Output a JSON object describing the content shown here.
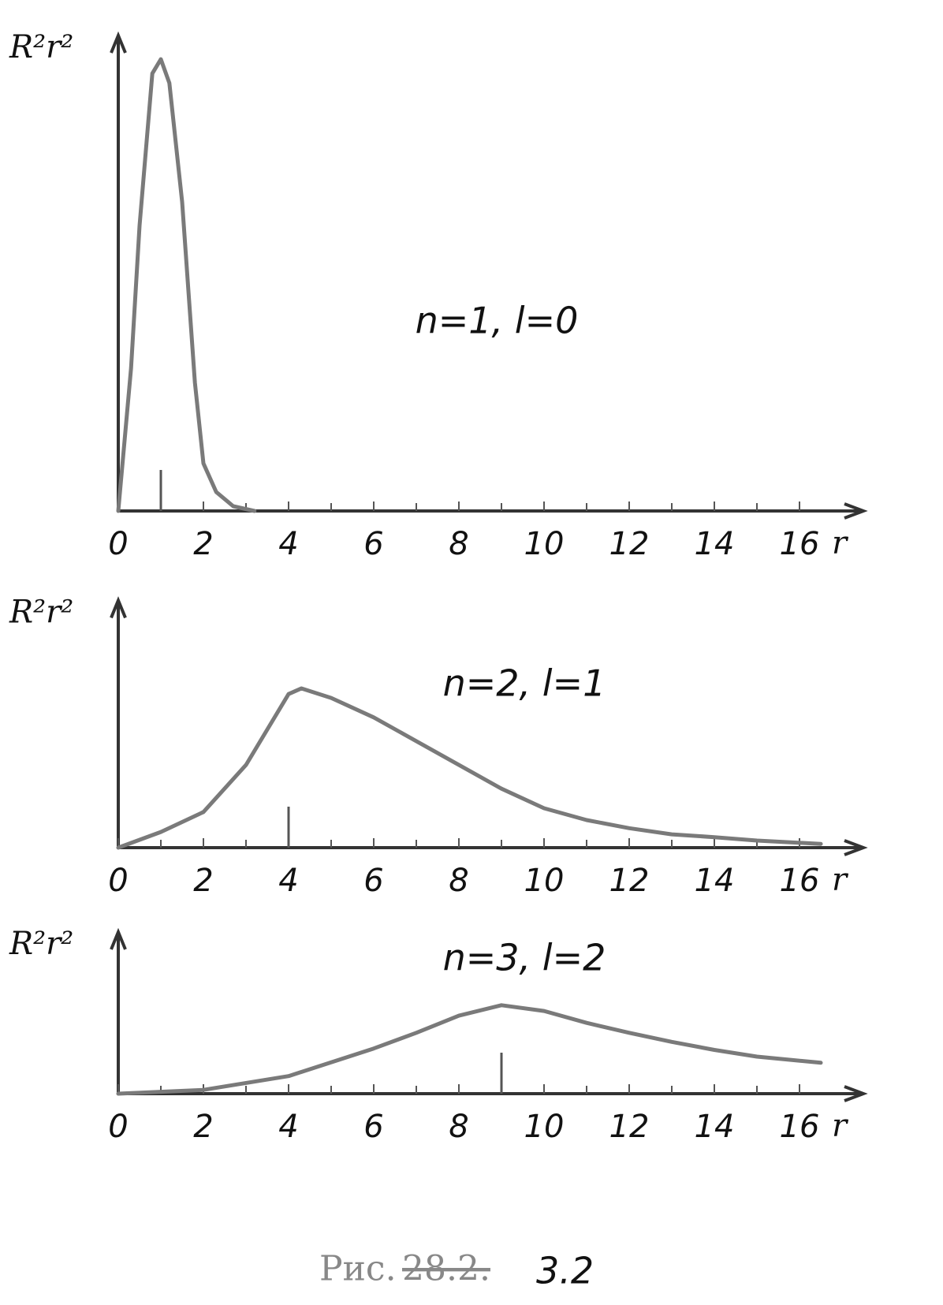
{
  "chart_data": [
    {
      "type": "line",
      "y_label": "R²r²",
      "x_label": "r",
      "annotation": "n=1,  l=0",
      "xlim": [
        0,
        17.5
      ],
      "ylim": [
        0,
        1
      ],
      "xticks": [
        0,
        2,
        4,
        6,
        8,
        10,
        12,
        14,
        16
      ],
      "minor_xticks": [
        1,
        3,
        5,
        7,
        9,
        11,
        13,
        15
      ],
      "peak_marker": 1,
      "series": [
        {
          "color": "#7a7a7a",
          "x": [
            0,
            0.3,
            0.5,
            0.8,
            1.0,
            1.2,
            1.5,
            1.8,
            2.0,
            2.3,
            2.7,
            3.2
          ],
          "values": [
            0,
            0.3,
            0.6,
            0.92,
            0.95,
            0.9,
            0.65,
            0.27,
            0.1,
            0.04,
            0.01,
            0
          ]
        }
      ]
    },
    {
      "type": "line",
      "y_label": "R²r²",
      "x_label": "r",
      "annotation": "n=2,  l=1",
      "xlim": [
        0,
        17.5
      ],
      "ylim": [
        0,
        0.52
      ],
      "xticks": [
        0,
        2,
        4,
        6,
        8,
        10,
        12,
        14,
        16
      ],
      "minor_xticks": [
        1,
        3,
        5,
        7,
        9,
        11,
        13,
        15
      ],
      "peak_marker": 4,
      "series": [
        {
          "color": "#7a7a7a",
          "x": [
            0,
            1,
            2,
            3,
            4,
            4.3,
            5,
            6,
            7,
            8,
            9,
            10,
            11,
            12,
            13,
            14,
            15,
            16.5
          ],
          "values": [
            0,
            0.033,
            0.075,
            0.174,
            0.323,
            0.335,
            0.315,
            0.274,
            0.224,
            0.174,
            0.124,
            0.083,
            0.058,
            0.041,
            0.028,
            0.022,
            0.015,
            0.008
          ]
        }
      ]
    },
    {
      "type": "line",
      "y_label": "R²r²",
      "x_label": "r",
      "annotation": "n=3,  l=2",
      "xlim": [
        0,
        17.5
      ],
      "ylim": [
        0,
        0.34
      ],
      "xticks": [
        0,
        2,
        4,
        6,
        8,
        10,
        12,
        14,
        16
      ],
      "minor_xticks": [
        1,
        3,
        5,
        7,
        9,
        11,
        13,
        15
      ],
      "peak_marker": 9,
      "series": [
        {
          "color": "#7a7a7a",
          "x": [
            0,
            2,
            4,
            6,
            7,
            8,
            9,
            10,
            11,
            12,
            13,
            14,
            15,
            16.5
          ],
          "values": [
            0,
            0.008,
            0.037,
            0.095,
            0.128,
            0.164,
            0.186,
            0.174,
            0.149,
            0.128,
            0.109,
            0.092,
            0.078,
            0.065
          ]
        }
      ]
    }
  ],
  "caption": {
    "prefix": "Рис.",
    "old_number": "28.2.",
    "new_number": "3.2"
  }
}
